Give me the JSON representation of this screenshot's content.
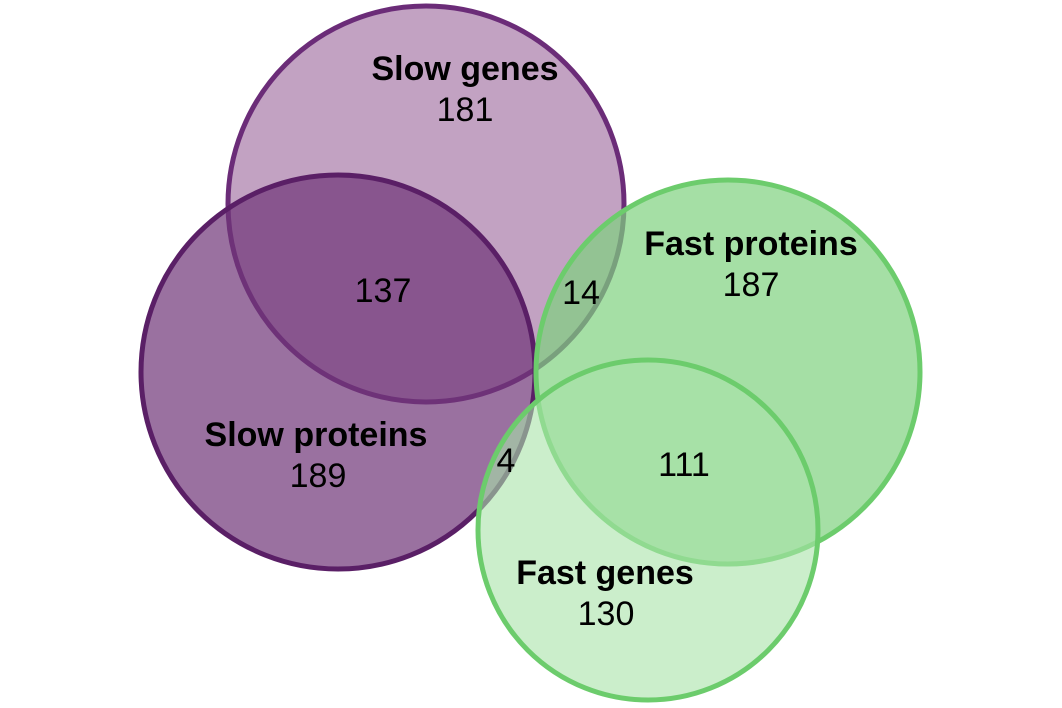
{
  "diagram": {
    "type": "venn",
    "sets": [
      {
        "id": "slow-genes",
        "label": "Slow genes",
        "count": "181",
        "fill": "#a87ba8",
        "stroke": "#6b2c78"
      },
      {
        "id": "slow-proteins",
        "label": "Slow proteins",
        "count": "189",
        "fill": "#6f3577",
        "stroke": "#5a1f66"
      },
      {
        "id": "fast-proteins",
        "label": "Fast proteins",
        "count": "187",
        "fill": "#7fd27f",
        "stroke": "#6ccc6c"
      },
      {
        "id": "fast-genes",
        "label": "Fast genes",
        "count": "130",
        "fill": "#a9e3a9",
        "stroke": "#6ccc6c"
      }
    ],
    "intersections": [
      {
        "id": "slow-genes-slow-proteins",
        "sets": [
          "slow-genes",
          "slow-proteins"
        ],
        "count": "137"
      },
      {
        "id": "slow-genes-fast-proteins",
        "sets": [
          "slow-genes",
          "fast-proteins"
        ],
        "count": "14"
      },
      {
        "id": "slow-proteins-fast-genes",
        "sets": [
          "slow-proteins",
          "fast-genes"
        ],
        "count": "4"
      },
      {
        "id": "fast-proteins-fast-genes",
        "sets": [
          "fast-proteins",
          "fast-genes"
        ],
        "count": "111"
      }
    ]
  }
}
